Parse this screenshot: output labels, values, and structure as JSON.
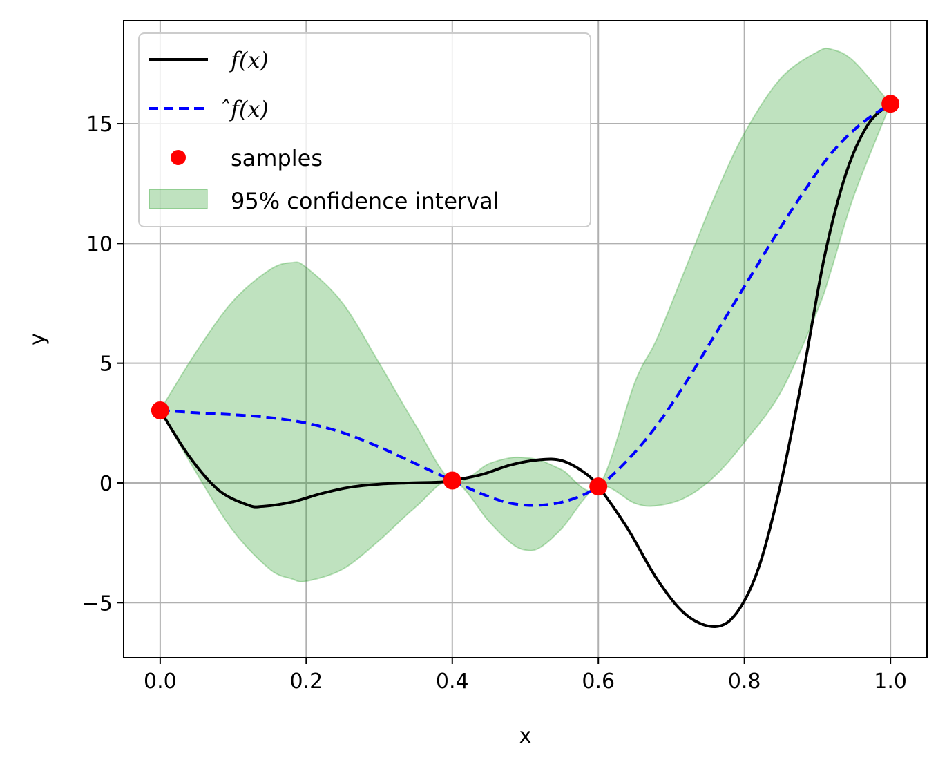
{
  "chart_data": {
    "type": "line",
    "xlabel": "x",
    "ylabel": "y",
    "xlim": [
      -0.05,
      1.05
    ],
    "ylim": [
      -7.3,
      19.3
    ],
    "xticks": [
      0.0,
      0.2,
      0.4,
      0.6,
      0.8,
      1.0
    ],
    "xtick_labels": [
      "0.0",
      "0.2",
      "0.4",
      "0.6",
      "0.8",
      "1.0"
    ],
    "yticks": [
      -5,
      0,
      5,
      10,
      15
    ],
    "ytick_labels": [
      "−5",
      "0",
      "5",
      "10",
      "15"
    ],
    "grid": true,
    "legend_position": "top-left",
    "series": [
      {
        "name": "f(x)",
        "kind": "line",
        "style": "solid",
        "color": "#000000",
        "points": [
          [
            0.0,
            3.03
          ],
          [
            0.04,
            1.1
          ],
          [
            0.08,
            -0.3
          ],
          [
            0.12,
            -0.92
          ],
          [
            0.14,
            -0.98
          ],
          [
            0.18,
            -0.8
          ],
          [
            0.22,
            -0.45
          ],
          [
            0.26,
            -0.18
          ],
          [
            0.3,
            -0.05
          ],
          [
            0.34,
            0.0
          ],
          [
            0.38,
            0.03
          ],
          [
            0.4,
            0.1
          ],
          [
            0.44,
            0.35
          ],
          [
            0.48,
            0.75
          ],
          [
            0.52,
            0.97
          ],
          [
            0.55,
            0.93
          ],
          [
            0.58,
            0.45
          ],
          [
            0.6,
            -0.15
          ],
          [
            0.64,
            -1.9
          ],
          [
            0.68,
            -4.0
          ],
          [
            0.72,
            -5.5
          ],
          [
            0.76,
            -6.0
          ],
          [
            0.79,
            -5.4
          ],
          [
            0.82,
            -3.5
          ],
          [
            0.85,
            0.0
          ],
          [
            0.88,
            4.5
          ],
          [
            0.91,
            9.5
          ],
          [
            0.94,
            13.0
          ],
          [
            0.97,
            15.0
          ],
          [
            1.0,
            15.83
          ]
        ]
      },
      {
        "name": "̂f(x)",
        "kind": "line",
        "style": "dashed",
        "color": "#0000ff",
        "points": [
          [
            0.0,
            3.03
          ],
          [
            0.05,
            2.93
          ],
          [
            0.1,
            2.85
          ],
          [
            0.15,
            2.73
          ],
          [
            0.2,
            2.5
          ],
          [
            0.25,
            2.1
          ],
          [
            0.3,
            1.5
          ],
          [
            0.35,
            0.8
          ],
          [
            0.4,
            0.1
          ],
          [
            0.44,
            -0.45
          ],
          [
            0.48,
            -0.85
          ],
          [
            0.52,
            -0.93
          ],
          [
            0.56,
            -0.72
          ],
          [
            0.6,
            -0.15
          ],
          [
            0.64,
            0.95
          ],
          [
            0.68,
            2.4
          ],
          [
            0.72,
            4.2
          ],
          [
            0.76,
            6.2
          ],
          [
            0.8,
            8.2
          ],
          [
            0.84,
            10.2
          ],
          [
            0.88,
            12.1
          ],
          [
            0.92,
            13.8
          ],
          [
            0.96,
            15.0
          ],
          [
            1.0,
            15.83
          ]
        ]
      },
      {
        "name": "samples",
        "kind": "scatter",
        "color": "#ff0000",
        "x": [
          0.0,
          0.4,
          0.6,
          1.0
        ],
        "y": [
          3.03,
          0.1,
          -0.15,
          15.83
        ]
      },
      {
        "name": "95% confidence interval",
        "kind": "band",
        "color": "#2ca02c",
        "x": [
          0.0,
          0.05,
          0.1,
          0.15,
          0.18,
          0.2,
          0.25,
          0.3,
          0.35,
          0.4,
          0.45,
          0.48,
          0.5,
          0.52,
          0.55,
          0.6,
          0.65,
          0.68,
          0.72,
          0.76,
          0.8,
          0.85,
          0.9,
          0.92,
          0.95,
          1.0
        ],
        "upper": [
          3.03,
          5.5,
          7.6,
          8.9,
          9.2,
          9.0,
          7.5,
          5.0,
          2.4,
          0.1,
          0.8,
          1.05,
          1.05,
          0.95,
          0.55,
          -0.15,
          4.2,
          6.0,
          9.0,
          12.0,
          14.6,
          16.9,
          18.0,
          18.1,
          17.6,
          15.83
        ],
        "lower": [
          3.03,
          0.4,
          -2.0,
          -3.6,
          -4.0,
          -4.1,
          -3.6,
          -2.4,
          -1.0,
          0.1,
          -1.6,
          -2.5,
          -2.8,
          -2.7,
          -1.9,
          -0.15,
          -0.85,
          -0.95,
          -0.6,
          0.3,
          1.7,
          3.8,
          7.2,
          9.0,
          12.0,
          15.83
        ]
      }
    ]
  },
  "legend": {
    "items": [
      {
        "label": "f(x)",
        "icon": "solid-line",
        "color": "#000000"
      },
      {
        "label": "̂f(x)",
        "icon": "dashed-line",
        "color": "#0000ff"
      },
      {
        "label": "samples",
        "icon": "red-dot",
        "color": "#ff0000"
      },
      {
        "label": "95% confidence interval",
        "icon": "green-patch",
        "color": "#2ca02c"
      }
    ]
  }
}
